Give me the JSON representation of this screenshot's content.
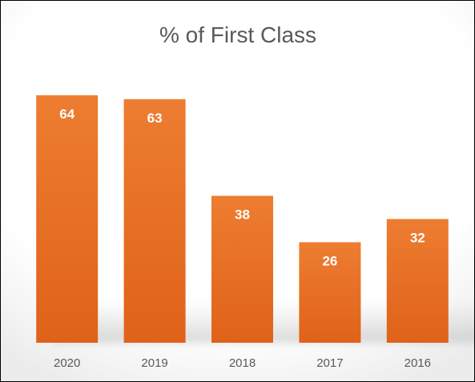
{
  "chart_data": {
    "type": "bar",
    "title": "% of First Class",
    "categories": [
      "2020",
      "2019",
      "2018",
      "2017",
      "2016"
    ],
    "values": [
      64,
      63,
      38,
      26,
      32
    ],
    "data_labels": [
      "64",
      "63",
      "38",
      "26",
      "32"
    ],
    "xlabel": "",
    "ylabel": "",
    "ylim": [
      0,
      64
    ],
    "grid": false,
    "legend": "none",
    "colors": {
      "bar_top": "#ED7D31",
      "bar_bottom": "#E0621A",
      "label_text": "#FFFFFF",
      "title_text": "#595959",
      "tick_text": "#595959"
    }
  }
}
